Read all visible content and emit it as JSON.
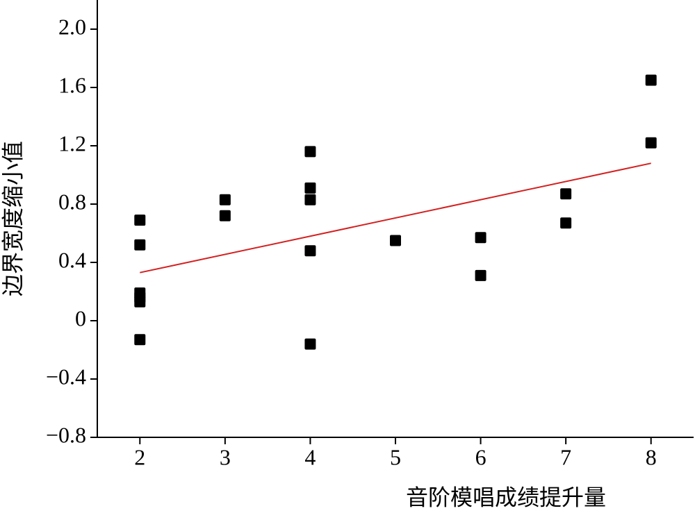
{
  "chart_data": {
    "type": "scatter",
    "x_label": "音阶模唱成绩提升量",
    "y_label": "边界宽度缩小值",
    "xlim": [
      1.5,
      8.5
    ],
    "xticks": [
      2,
      3,
      4,
      5,
      6,
      7,
      8
    ],
    "ylim": [
      -0.8,
      2.2
    ],
    "yticks": [
      {
        "value": -0.8,
        "label": "−0.8"
      },
      {
        "value": -0.4,
        "label": "−0.4"
      },
      0,
      0.4,
      0.8,
      1.2,
      1.6,
      {
        "value": 2.0,
        "label": "2.0"
      }
    ],
    "color": "#000000",
    "x": [
      2,
      2,
      2,
      2,
      2,
      2,
      3,
      3,
      4,
      4,
      4,
      4,
      4,
      5,
      6,
      6,
      7,
      7,
      8,
      8
    ],
    "values": [
      0.69,
      0.52,
      0.19,
      0.16,
      0.13,
      -0.13,
      0.83,
      0.72,
      1.16,
      0.91,
      0.83,
      0.48,
      -0.16,
      0.55,
      0.57,
      0.31,
      0.87,
      0.67,
      1.65,
      1.22
    ],
    "trend_line": {
      "color": "#d42020",
      "x": [
        2,
        8
      ],
      "values": [
        0.33,
        1.08
      ]
    }
  }
}
